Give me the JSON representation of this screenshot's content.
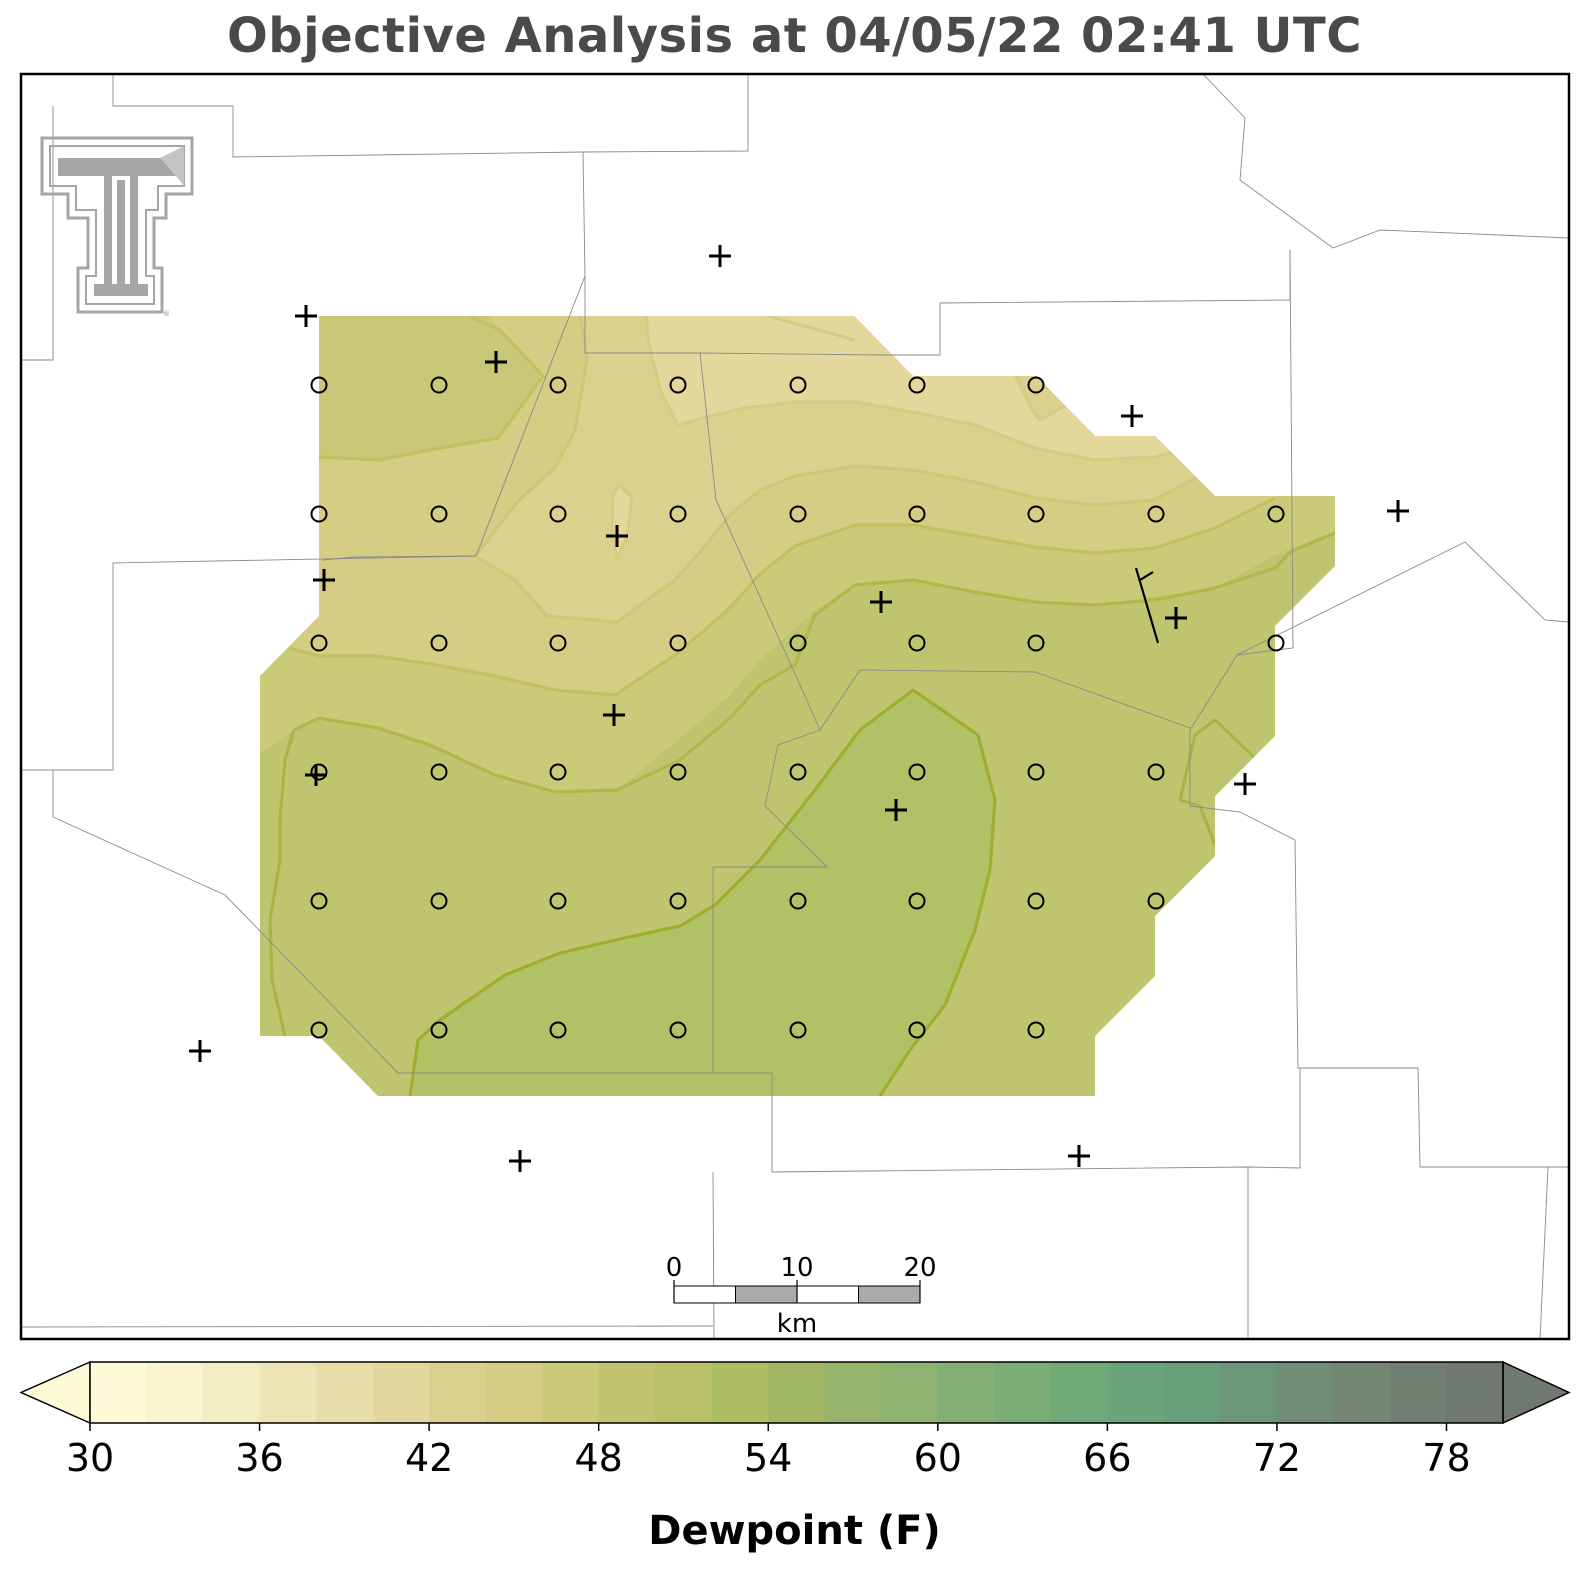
{
  "title": "Objective Analysis at 04/05/22 02:41 UTC",
  "colorbar": {
    "label": "Dewpoint (F)",
    "min": 30,
    "max": 80,
    "step": 2,
    "ticks": [
      30,
      36,
      42,
      48,
      54,
      60,
      66,
      72,
      78
    ],
    "extend": "both",
    "colors": [
      "#fdfad8",
      "#f8f4d0",
      "#f3edc4",
      "#eee5b7",
      "#e8deaa",
      "#e2d79c",
      "#dbd18f",
      "#d4cd83",
      "#cbca78",
      "#c2c56f",
      "#b8c167",
      "#acbd62",
      "#a3b865",
      "#97b46c",
      "#8eb26f",
      "#84b073",
      "#7aae76",
      "#71aa79",
      "#6ba57c",
      "#699f7b",
      "#6c9679",
      "#718d78",
      "#738676",
      "#717e71",
      "#707970"
    ]
  },
  "scale_bar": {
    "ticks": [
      "0",
      "10",
      "20"
    ],
    "unit": "km"
  },
  "logo": {
    "name": "texas-tech-double-t-logo"
  },
  "observations": {
    "plus_marks": 17,
    "grid_circles": 44,
    "wind_barbs": 1
  }
}
